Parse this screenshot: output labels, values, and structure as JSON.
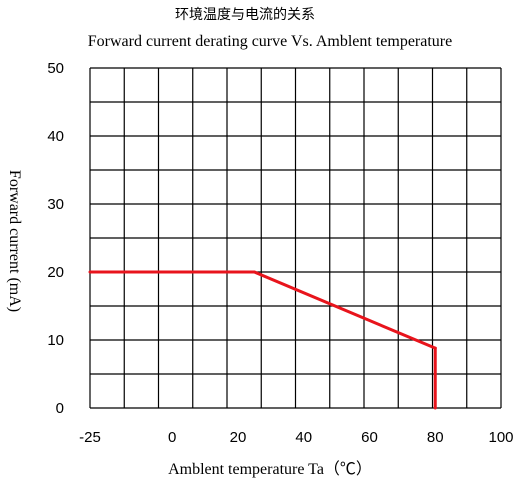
{
  "chart_data": {
    "type": "line",
    "title": "环境温度与电流的关系",
    "subtitle": "Forward current derating curve Vs. Amblent temperature",
    "xlabel": "Amblent temperature Ta（℃）",
    "ylabel": "Forward current (mA)",
    "xlim": [
      -25,
      100
    ],
    "ylim": [
      0,
      50
    ],
    "x_ticks": [
      "-25",
      "0",
      "20",
      "40",
      "60",
      "80",
      "100"
    ],
    "x_tick_values": [
      -25,
      0,
      20,
      40,
      60,
      80,
      100
    ],
    "y_ticks": [
      "0",
      "10",
      "20",
      "30",
      "40",
      "50"
    ],
    "y_tick_values": [
      0,
      10,
      20,
      30,
      40,
      50
    ],
    "grid": true,
    "series": [
      {
        "x": [
          -25,
          25,
          80,
          80
        ],
        "y": [
          20,
          20,
          8.8,
          0
        ],
        "color": "#e8141c"
      }
    ]
  }
}
